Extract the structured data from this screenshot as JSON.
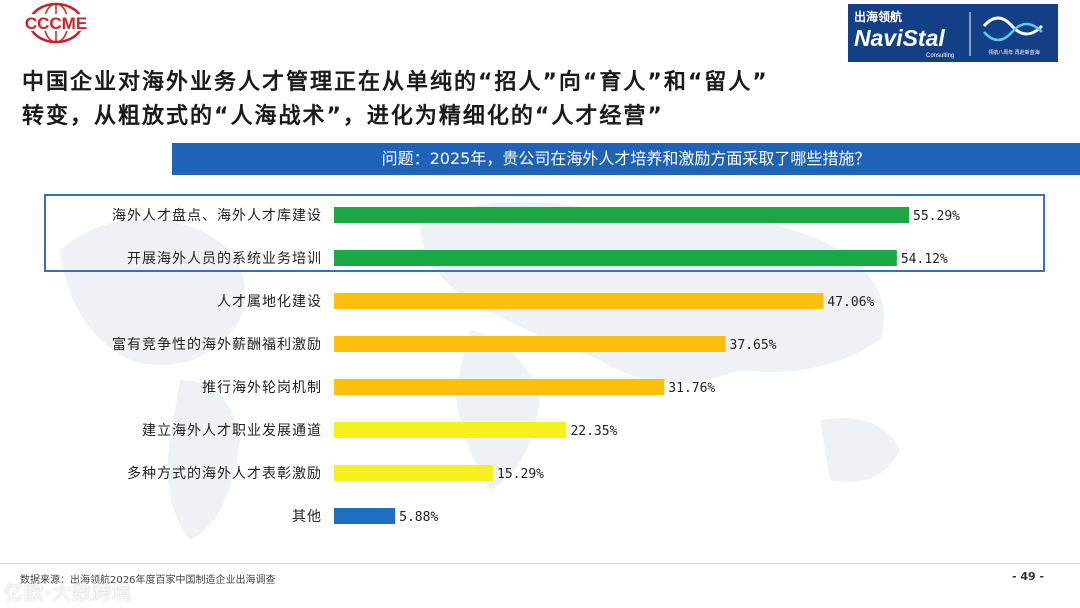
{
  "header": {
    "logo_left_text": "CCCME",
    "logo_right_cn": "出海领航",
    "logo_right_brand": "NaviStal",
    "logo_right_sub": "Consulting",
    "logo_right_tagline": "领航八周年 再赴新蓝海"
  },
  "headline": {
    "line1": "中国企业对海外业务人才管理正在从单纯的“招人”向“育人”和“留人”",
    "line2": "转变，从粗放式的“人海战术”，进化为精细化的“人才经营”"
  },
  "question": "问题：2025年，贵公司在海外人才培养和激励方面采取了哪些措施？",
  "chart_data": {
    "type": "bar",
    "orientation": "horizontal",
    "categories": [
      "海外人才盘点、海外人才库建设",
      "开展海外人员的系统业务培训",
      "人才属地化建设",
      "富有竞争性的海外薪酬福利激励",
      "推行海外轮岗机制",
      "建立海外人才职业发展通道",
      "多种方式的海外人才表彰激励",
      "其他"
    ],
    "values": [
      55.29,
      54.12,
      47.06,
      37.65,
      31.76,
      22.35,
      15.29,
      5.88
    ],
    "value_labels": [
      "55.29%",
      "54.12%",
      "47.06%",
      "37.65%",
      "31.76%",
      "22.35%",
      "15.29%",
      "5.88%"
    ],
    "bar_colors": [
      "#1aa845",
      "#1aa845",
      "#fbbf0c",
      "#fbbf0c",
      "#fbbf0c",
      "#f5f01e",
      "#f5f01e",
      "#1f6fbf"
    ],
    "xlim": [
      0,
      100
    ],
    "grid": false,
    "highlight": "first two bars boxed"
  },
  "footer": {
    "source": "数据来源：出海领航2026年度百家中国制造企业出海调查",
    "page": "- 49 -",
    "watermark": "亿欧·大数跨境"
  }
}
